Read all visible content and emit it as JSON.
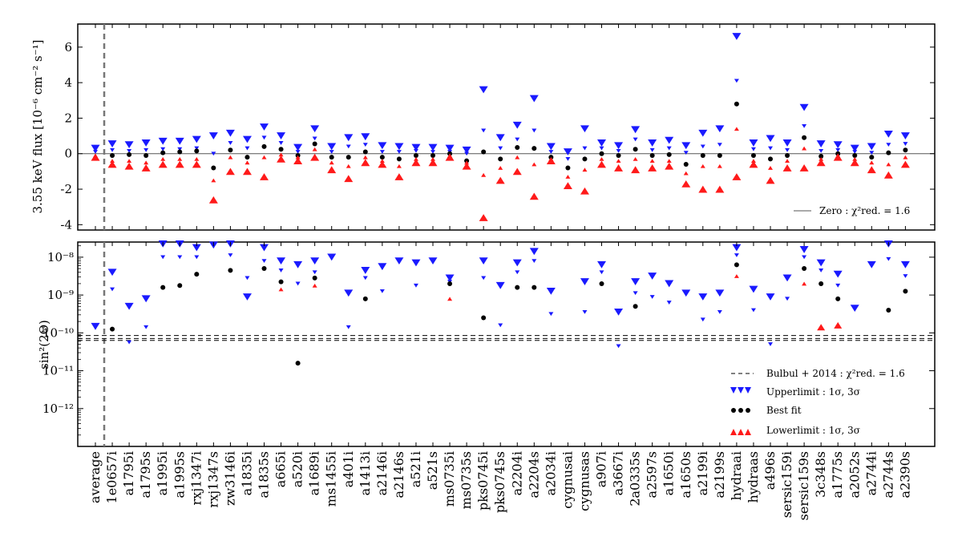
{
  "chart_data": [
    {
      "type": "scatter",
      "panel": "top",
      "ylabel": "3.55 keV flux [10⁻⁶ cm⁻² s⁻¹]",
      "ylim": [
        -4.3,
        7.3
      ],
      "yticks": [
        -4,
        -2,
        0,
        2,
        4,
        6
      ],
      "zero_line": 0,
      "legend": {
        "line_label": "Zero : χ²red. = 1.6",
        "position": "bottom-right"
      },
      "points": [
        {
          "cat": "average",
          "up1": 0.1,
          "up3": 0.3,
          "best": null,
          "lo1": -0.1,
          "lo3": -0.2
        },
        {
          "cat": "1e0657i",
          "up1": 0.2,
          "up3": 0.55,
          "best": -0.1,
          "lo1": -0.4,
          "lo3": -0.6
        },
        {
          "cat": "a1795i",
          "up1": 0.15,
          "up3": 0.5,
          "best": -0.05,
          "lo1": -0.4,
          "lo3": -0.7
        },
        {
          "cat": "a1795s",
          "up1": 0.2,
          "up3": 0.6,
          "best": -0.1,
          "lo1": -0.5,
          "lo3": -0.8
        },
        {
          "cat": "a1995i",
          "up1": 0.25,
          "up3": 0.7,
          "best": 0.05,
          "lo1": -0.3,
          "lo3": -0.6
        },
        {
          "cat": "a1995s",
          "up1": 0.25,
          "up3": 0.7,
          "best": 0.1,
          "lo1": -0.3,
          "lo3": -0.6
        },
        {
          "cat": "rxj1347i",
          "up1": 0.3,
          "up3": 0.8,
          "best": 0.15,
          "lo1": -0.3,
          "lo3": -0.6
        },
        {
          "cat": "rxj1347s",
          "up1": 0.0,
          "up3": 1.0,
          "best": -0.8,
          "lo1": -1.5,
          "lo3": -2.6
        },
        {
          "cat": "zw3146i",
          "up1": 0.6,
          "up3": 1.15,
          "best": 0.2,
          "lo1": -0.2,
          "lo3": -1.0
        },
        {
          "cat": "a1835i",
          "up1": 0.3,
          "up3": 0.8,
          "best": -0.2,
          "lo1": -0.5,
          "lo3": -1.0
        },
        {
          "cat": "a1835s",
          "up1": 0.9,
          "up3": 1.5,
          "best": 0.4,
          "lo1": -0.2,
          "lo3": -1.3
        },
        {
          "cat": "a665i",
          "up1": 0.6,
          "up3": 1.0,
          "best": 0.25,
          "lo1": -0.05,
          "lo3": -0.3
        },
        {
          "cat": "a520i",
          "up1": 0.1,
          "up3": 0.35,
          "best": -0.1,
          "lo1": -0.2,
          "lo3": -0.4
        },
        {
          "cat": "a1689i",
          "up1": 0.85,
          "up3": 1.4,
          "best": 0.55,
          "lo1": 0.25,
          "lo3": -0.2
        },
        {
          "cat": "ms1455i",
          "up1": 0.1,
          "up3": 0.4,
          "best": -0.2,
          "lo1": -0.5,
          "lo3": -0.9
        },
        {
          "cat": "a401i",
          "up1": 0.4,
          "up3": 0.9,
          "best": -0.2,
          "lo1": -0.7,
          "lo3": -1.4
        },
        {
          "cat": "a1413i",
          "up1": 0.5,
          "up3": 0.95,
          "best": 0.1,
          "lo1": -0.2,
          "lo3": -0.5
        },
        {
          "cat": "a2146i",
          "up1": 0.1,
          "up3": 0.45,
          "best": -0.2,
          "lo1": -0.4,
          "lo3": -0.6
        },
        {
          "cat": "a2146s",
          "up1": 0.1,
          "up3": 0.4,
          "best": -0.3,
          "lo1": -0.7,
          "lo3": -1.3
        },
        {
          "cat": "a521i",
          "up1": 0.15,
          "up3": 0.35,
          "best": -0.1,
          "lo1": -0.3,
          "lo3": -0.5
        },
        {
          "cat": "a521s",
          "up1": 0.1,
          "up3": 0.35,
          "best": -0.1,
          "lo1": -0.3,
          "lo3": -0.5
        },
        {
          "cat": "ms0735i",
          "up1": 0.1,
          "up3": 0.3,
          "best": 0.0,
          "lo1": -0.1,
          "lo3": -0.2
        },
        {
          "cat": "ms0735s",
          "up1": 0.0,
          "up3": 0.2,
          "best": -0.4,
          "lo1": -0.5,
          "lo3": -0.7
        },
        {
          "cat": "pks0745i",
          "up1": 1.3,
          "up3": 3.6,
          "best": 0.1,
          "lo1": -1.2,
          "lo3": -3.6
        },
        {
          "cat": "pks0745s",
          "up1": 0.3,
          "up3": 0.9,
          "best": -0.3,
          "lo1": -0.8,
          "lo3": -1.5
        },
        {
          "cat": "a2204i",
          "up1": 0.8,
          "up3": 1.6,
          "best": 0.35,
          "lo1": -0.2,
          "lo3": -1.0
        },
        {
          "cat": "a2204s",
          "up1": 1.3,
          "up3": 3.1,
          "best": 0.3,
          "lo1": -0.6,
          "lo3": -2.4
        },
        {
          "cat": "a2034i",
          "up1": 0.1,
          "up3": 0.4,
          "best": -0.2,
          "lo1": -0.3,
          "lo3": -0.4
        },
        {
          "cat": "cygnusai",
          "up1": -0.3,
          "up3": 0.1,
          "best": -0.8,
          "lo1": -1.3,
          "lo3": -1.8
        },
        {
          "cat": "cygnusas",
          "up1": 0.3,
          "up3": 1.4,
          "best": -0.3,
          "lo1": -0.9,
          "lo3": -2.1
        },
        {
          "cat": "a907i",
          "up1": 0.3,
          "up3": 0.6,
          "best": 0.0,
          "lo1": -0.3,
          "lo3": -0.6
        },
        {
          "cat": "a3667i",
          "up1": 0.15,
          "up3": 0.45,
          "best": -0.1,
          "lo1": -0.4,
          "lo3": -0.8
        },
        {
          "cat": "2a0335s",
          "up1": 0.8,
          "up3": 1.35,
          "best": 0.25,
          "lo1": -0.3,
          "lo3": -0.9
        },
        {
          "cat": "a2597s",
          "up1": 0.2,
          "up3": 0.6,
          "best": -0.1,
          "lo1": -0.4,
          "lo3": -0.8
        },
        {
          "cat": "a1650i",
          "up1": 0.3,
          "up3": 0.75,
          "best": -0.05,
          "lo1": -0.4,
          "lo3": -0.7
        },
        {
          "cat": "a1650s",
          "up1": 0.05,
          "up3": 0.45,
          "best": -0.6,
          "lo1": -1.1,
          "lo3": -1.7
        },
        {
          "cat": "a2199i",
          "up1": 0.4,
          "up3": 1.15,
          "best": -0.1,
          "lo1": -0.7,
          "lo3": -2.0
        },
        {
          "cat": "a2199s",
          "up1": 0.5,
          "up3": 1.4,
          "best": -0.1,
          "lo1": -0.7,
          "lo3": -2.0
        },
        {
          "cat": "hydraai",
          "up1": 4.1,
          "up3": 6.6,
          "best": 2.8,
          "lo1": 1.4,
          "lo3": -1.3
        },
        {
          "cat": "hydraas",
          "up1": 0.25,
          "up3": 0.6,
          "best": -0.1,
          "lo1": -0.4,
          "lo3": -0.6
        },
        {
          "cat": "a496s",
          "up1": 0.3,
          "up3": 0.85,
          "best": -0.3,
          "lo1": -0.8,
          "lo3": -1.5
        },
        {
          "cat": "sersic159i",
          "up1": 0.2,
          "up3": 0.6,
          "best": -0.1,
          "lo1": -0.4,
          "lo3": -0.8
        },
        {
          "cat": "sersic159s",
          "up1": 1.55,
          "up3": 2.6,
          "best": 0.9,
          "lo1": 0.3,
          "lo3": -0.8
        },
        {
          "cat": "3c348s",
          "up1": 0.15,
          "up3": 0.55,
          "best": -0.15,
          "lo1": -0.3,
          "lo3": -0.5
        },
        {
          "cat": "a1775s",
          "up1": 0.2,
          "up3": 0.5,
          "best": 0.0,
          "lo1": -0.1,
          "lo3": -0.2
        },
        {
          "cat": "a2052s",
          "up1": 0.1,
          "up3": 0.3,
          "best": -0.1,
          "lo1": -0.3,
          "lo3": -0.5
        },
        {
          "cat": "a2744i",
          "up1": 0.05,
          "up3": 0.4,
          "best": -0.2,
          "lo1": -0.5,
          "lo3": -0.9
        },
        {
          "cat": "a2744s",
          "up1": 0.5,
          "up3": 1.1,
          "best": 0.05,
          "lo1": -0.6,
          "lo3": -1.2
        },
        {
          "cat": "a2390s",
          "up1": 0.55,
          "up3": 1.0,
          "best": 0.2,
          "lo1": -0.2,
          "lo3": -0.6
        }
      ]
    },
    {
      "type": "scatter",
      "panel": "bottom",
      "yscale": "log",
      "ylabel": "sin²(2Θ)",
      "ylim_exp": [
        -13.0,
        -7.6
      ],
      "yticks_exp": [
        -12,
        -11,
        -10,
        -9,
        -8
      ],
      "ytick_labels": [
        "10⁻¹²",
        "10⁻¹¹",
        "10⁻¹⁰",
        "10⁻⁹",
        "10⁻⁸"
      ],
      "band_exp": {
        "low": -10.2,
        "mid": -10.15,
        "high": -10.07
      },
      "legend": {
        "position": "bottom-right",
        "entries": [
          "Bulbul + 2014 : χ²red. = 1.6",
          "Upperlimit : 1σ, 3σ",
          "Best fit",
          "Lowerlimit : 1σ, 3σ"
        ]
      },
      "points": [
        {
          "cat": "average",
          "up1": null,
          "up3": -9.83,
          "best": null,
          "lo1": null,
          "lo3": null
        },
        {
          "cat": "1e0657i",
          "up1": -8.85,
          "up3": -8.4,
          "best": -9.9,
          "lo1": null,
          "lo3": null
        },
        {
          "cat": "a1795i",
          "up1": -10.25,
          "up3": -9.3,
          "best": null,
          "lo1": null,
          "lo3": null
        },
        {
          "cat": "a1795s",
          "up1": -9.85,
          "up3": -9.1,
          "best": null,
          "lo1": null,
          "lo3": null
        },
        {
          "cat": "a1995i",
          "up1": -8.0,
          "up3": -7.65,
          "best": -8.8,
          "lo1": null,
          "lo3": null
        },
        {
          "cat": "a1995s",
          "up1": -8.0,
          "up3": -7.65,
          "best": -8.75,
          "lo1": null,
          "lo3": null
        },
        {
          "cat": "rxj1347i",
          "up1": -8.0,
          "up3": -7.75,
          "best": -8.45,
          "lo1": null,
          "lo3": null
        },
        {
          "cat": "rxj1347s",
          "up1": null,
          "up3": -7.68,
          "best": null,
          "lo1": null,
          "lo3": null
        },
        {
          "cat": "zw3146i",
          "up1": -7.95,
          "up3": -7.65,
          "best": -8.35,
          "lo1": null,
          "lo3": null
        },
        {
          "cat": "a1835i",
          "up1": -8.55,
          "up3": -9.05,
          "best": null,
          "lo1": null,
          "lo3": null
        },
        {
          "cat": "a1835s",
          "up1": -8.1,
          "up3": -7.75,
          "best": -8.3,
          "lo1": null,
          "lo3": null
        },
        {
          "cat": "a665i",
          "up1": -8.35,
          "up3": -8.1,
          "best": -8.65,
          "lo1": -8.85,
          "lo3": null
        },
        {
          "cat": "a520i",
          "up1": -8.7,
          "up3": -8.2,
          "best": -10.8,
          "lo1": null,
          "lo3": null
        },
        {
          "cat": "a1689i",
          "up1": -8.4,
          "up3": -8.1,
          "best": -8.55,
          "lo1": -8.75,
          "lo3": null
        },
        {
          "cat": "ms1455i",
          "up1": null,
          "up3": -8.0,
          "best": null,
          "lo1": null,
          "lo3": null
        },
        {
          "cat": "a401i",
          "up1": -9.85,
          "up3": -8.95,
          "best": null,
          "lo1": null,
          "lo3": null
        },
        {
          "cat": "a1413i",
          "up1": -8.55,
          "up3": -8.35,
          "best": -9.1,
          "lo1": null,
          "lo3": null
        },
        {
          "cat": "a2146i",
          "up1": -8.9,
          "up3": -8.25,
          "best": null,
          "lo1": null,
          "lo3": null
        },
        {
          "cat": "a2146s",
          "up1": null,
          "up3": -8.1,
          "best": null,
          "lo1": null,
          "lo3": null
        },
        {
          "cat": "a521i",
          "up1": -8.75,
          "up3": -8.15,
          "best": null,
          "lo1": null,
          "lo3": null
        },
        {
          "cat": "a521s",
          "up1": null,
          "up3": -8.1,
          "best": null,
          "lo1": null,
          "lo3": null
        },
        {
          "cat": "ms0735i",
          "up1": -8.65,
          "up3": -8.55,
          "best": -8.7,
          "lo1": -9.1,
          "lo3": null
        },
        {
          "cat": "ms0735s",
          "up1": null,
          "up3": null,
          "best": null,
          "lo1": null,
          "lo3": null
        },
        {
          "cat": "pks0745i",
          "up1": -8.55,
          "up3": -8.1,
          "best": -9.6,
          "lo1": null,
          "lo3": null
        },
        {
          "cat": "pks0745s",
          "up1": -9.8,
          "up3": -8.75,
          "best": null,
          "lo1": null,
          "lo3": null
        },
        {
          "cat": "a2204i",
          "up1": -8.4,
          "up3": -8.15,
          "best": -8.8,
          "lo1": null,
          "lo3": null
        },
        {
          "cat": "a2204s",
          "up1": -8.1,
          "up3": -7.85,
          "best": -8.8,
          "lo1": null,
          "lo3": null
        },
        {
          "cat": "a2034i",
          "up1": -9.5,
          "up3": -8.9,
          "best": null,
          "lo1": null,
          "lo3": null
        },
        {
          "cat": "cygnusai",
          "up1": null,
          "up3": null,
          "best": null,
          "lo1": null,
          "lo3": null
        },
        {
          "cat": "cygnusas",
          "up1": -9.45,
          "up3": -8.65,
          "best": null,
          "lo1": null,
          "lo3": null
        },
        {
          "cat": "a907i",
          "up1": -8.4,
          "up3": -8.2,
          "best": -8.7,
          "lo1": null,
          "lo3": null
        },
        {
          "cat": "a3667i",
          "up1": -10.35,
          "up3": -9.45,
          "best": null,
          "lo1": null,
          "lo3": null
        },
        {
          "cat": "2a0335s",
          "up1": -8.95,
          "up3": -8.65,
          "best": -9.3,
          "lo1": null,
          "lo3": null
        },
        {
          "cat": "a2597s",
          "up1": -9.05,
          "up3": -8.5,
          "best": null,
          "lo1": null,
          "lo3": null
        },
        {
          "cat": "a1650i",
          "up1": -9.2,
          "up3": -8.7,
          "best": null,
          "lo1": null,
          "lo3": null
        },
        {
          "cat": "a1650s",
          "up1": null,
          "up3": -8.95,
          "best": null,
          "lo1": null,
          "lo3": null
        },
        {
          "cat": "a2199i",
          "up1": -9.65,
          "up3": -9.05,
          "best": null,
          "lo1": null,
          "lo3": null
        },
        {
          "cat": "a2199s",
          "up1": -9.45,
          "up3": -8.95,
          "best": null,
          "lo1": null,
          "lo3": null
        },
        {
          "cat": "hydraai",
          "up1": -7.95,
          "up3": -7.75,
          "best": -8.2,
          "lo1": -8.5,
          "lo3": null
        },
        {
          "cat": "hydraas",
          "up1": -9.4,
          "up3": -8.85,
          "best": null,
          "lo1": null,
          "lo3": null
        },
        {
          "cat": "a496s",
          "up1": -10.3,
          "up3": -9.05,
          "best": null,
          "lo1": null,
          "lo3": null
        },
        {
          "cat": "sersic159i",
          "up1": -9.1,
          "up3": -8.55,
          "best": null,
          "lo1": null,
          "lo3": null
        },
        {
          "cat": "sersic159s",
          "up1": -8.0,
          "up3": -7.8,
          "best": -8.3,
          "lo1": -8.7,
          "lo3": null
        },
        {
          "cat": "3c348s",
          "up1": -8.35,
          "up3": -8.15,
          "best": -8.7,
          "lo1": null,
          "lo3": -9.85
        },
        {
          "cat": "a1775s",
          "up1": -8.75,
          "up3": -8.45,
          "best": -9.1,
          "lo1": null,
          "lo3": -9.8
        },
        {
          "cat": "a2052s",
          "up1": -9.35,
          "up3": -9.35,
          "best": null,
          "lo1": null,
          "lo3": null
        },
        {
          "cat": "a2744i",
          "up1": null,
          "up3": -8.2,
          "best": null,
          "lo1": null,
          "lo3": null
        },
        {
          "cat": "a2744s",
          "up1": -8.05,
          "up3": -7.65,
          "best": -9.4,
          "lo1": null,
          "lo3": null
        },
        {
          "cat": "a2390s",
          "up1": -8.5,
          "up3": -8.2,
          "best": -8.9,
          "lo1": null,
          "lo3": null
        }
      ]
    }
  ]
}
